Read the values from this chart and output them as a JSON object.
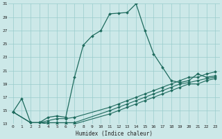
{
  "title": "",
  "xlabel": "Humidex (Indice chaleur)",
  "ylabel": "",
  "background_color": "#cce8e8",
  "grid_color": "#99cccc",
  "line_color": "#1e6b5e",
  "xlim": [
    -0.5,
    23.5
  ],
  "ylim": [
    13,
    31
  ],
  "xticks": [
    0,
    1,
    2,
    3,
    4,
    5,
    6,
    7,
    8,
    9,
    10,
    11,
    12,
    13,
    14,
    15,
    16,
    17,
    18,
    19,
    20,
    21,
    22,
    23
  ],
  "yticks": [
    13,
    15,
    17,
    19,
    21,
    23,
    25,
    27,
    29,
    31
  ],
  "series": [
    {
      "x": [
        0,
        1,
        2,
        3,
        4,
        5,
        6,
        7,
        8,
        9,
        10,
        11,
        12,
        13,
        14,
        15,
        16,
        17,
        18,
        19,
        20,
        21,
        22,
        23
      ],
      "y": [
        14.8,
        16.8,
        13.2,
        13.2,
        14.0,
        14.2,
        14.0,
        20.0,
        24.8,
        26.2,
        27.0,
        29.5,
        29.6,
        29.7,
        31.0,
        27.0,
        23.5,
        21.5,
        19.5,
        19.2,
        19.5,
        20.5,
        20.0,
        20.2
      ],
      "marker": "D",
      "markersize": 2,
      "linewidth": 0.9
    },
    {
      "x": [
        0,
        2,
        3,
        4,
        5,
        6,
        7,
        11,
        12,
        13,
        14,
        15,
        16,
        17,
        18,
        19,
        20,
        21,
        22,
        23
      ],
      "y": [
        14.8,
        13.2,
        13.2,
        13.5,
        13.8,
        13.8,
        14.0,
        15.5,
        16.0,
        16.5,
        17.0,
        17.5,
        18.0,
        18.5,
        19.0,
        19.5,
        20.0,
        20.0,
        20.5,
        20.8
      ],
      "marker": "D",
      "markersize": 2,
      "linewidth": 0.8
    },
    {
      "x": [
        0,
        2,
        3,
        4,
        5,
        6,
        7,
        11,
        12,
        13,
        14,
        15,
        16,
        17,
        18,
        19,
        20,
        21,
        22,
        23
      ],
      "y": [
        14.8,
        13.2,
        13.2,
        13.2,
        13.2,
        13.2,
        13.2,
        15.0,
        15.5,
        16.0,
        16.5,
        17.0,
        17.5,
        18.0,
        18.5,
        19.0,
        19.2,
        19.5,
        19.8,
        20.0
      ],
      "marker": "D",
      "markersize": 2,
      "linewidth": 0.8
    },
    {
      "x": [
        0,
        2,
        3,
        4,
        5,
        6,
        7,
        11,
        12,
        13,
        14,
        15,
        16,
        17,
        18,
        19,
        20,
        21,
        22,
        23
      ],
      "y": [
        14.8,
        13.2,
        13.2,
        13.0,
        13.0,
        13.0,
        13.0,
        14.5,
        15.0,
        15.5,
        16.0,
        16.5,
        17.0,
        17.5,
        18.0,
        18.5,
        19.0,
        19.0,
        19.5,
        19.8
      ],
      "marker": "D",
      "markersize": 2,
      "linewidth": 0.8
    }
  ]
}
